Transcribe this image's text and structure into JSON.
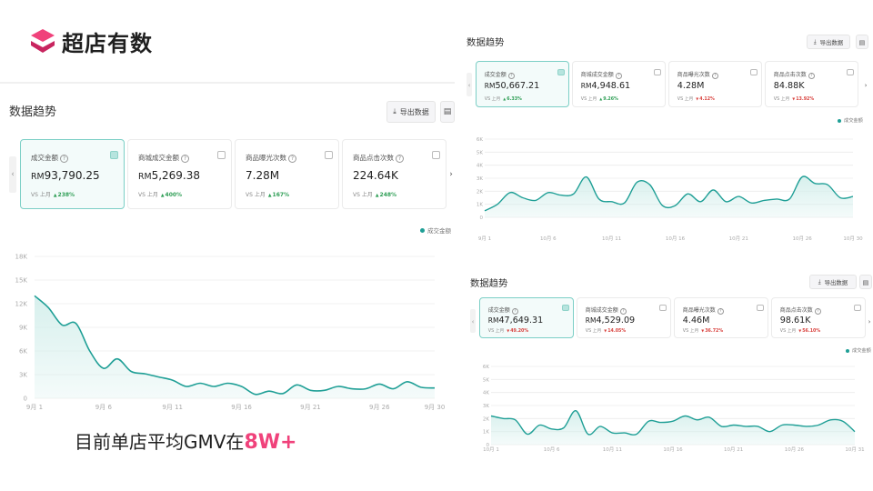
{
  "brand": {
    "name": "超店有数",
    "icon": "logo-mark-icon",
    "colors": {
      "top": "#f0427b",
      "bottom": "#c8255f"
    }
  },
  "caption": {
    "text": "目前单店平均GMV在",
    "highlight": "8W+"
  },
  "colors": {
    "accent": "#1f9f96",
    "fill": "#d5efec",
    "up": "#2e9e55",
    "down": "#d9433f",
    "highlight": "#f0427b"
  },
  "panels": [
    {
      "title": "数据趋势",
      "export_label": "导出数据",
      "export_icon": "download-icon",
      "save_icon": "save-icon",
      "legend": "成交金额",
      "metrics": [
        {
          "label": "成交金额",
          "currency": "RM",
          "value": "93,790.25",
          "cmp_label": "VS 上月",
          "change": "238%",
          "dir": "up",
          "arrow": "▲",
          "selected": true
        },
        {
          "label": "商城成交金额",
          "currency": "RM",
          "value": "5,269.38",
          "cmp_label": "VS 上月",
          "change": "400%",
          "dir": "up",
          "arrow": "▲",
          "selected": false
        },
        {
          "label": "商品曝光次数",
          "currency": "",
          "value": "7.28M",
          "cmp_label": "VS 上月",
          "change": "167%",
          "dir": "up",
          "arrow": "▲",
          "selected": false
        },
        {
          "label": "商品点击次数",
          "currency": "",
          "value": "224.64K",
          "cmp_label": "VS 上月",
          "change": "248%",
          "dir": "up",
          "arrow": "▲",
          "selected": false
        }
      ]
    },
    {
      "title": "数据趋势",
      "export_label": "导出数据",
      "export_icon": "download-icon",
      "save_icon": "save-icon",
      "legend": "成交金额",
      "metrics": [
        {
          "label": "成交金额",
          "currency": "RM",
          "value": "50,667.21",
          "cmp_label": "VS 上月",
          "change": "6.33%",
          "dir": "up",
          "arrow": "▲",
          "selected": true
        },
        {
          "label": "商城成交金额",
          "currency": "RM",
          "value": "4,948.61",
          "cmp_label": "VS 上月",
          "change": "9.26%",
          "dir": "up",
          "arrow": "▲",
          "selected": false
        },
        {
          "label": "商品曝光次数",
          "currency": "",
          "value": "4.28M",
          "cmp_label": "VS 上月",
          "change": "4.12%",
          "dir": "down",
          "arrow": "▼",
          "selected": false
        },
        {
          "label": "商品点击次数",
          "currency": "",
          "value": "84.88K",
          "cmp_label": "VS 上月",
          "change": "13.92%",
          "dir": "down",
          "arrow": "▼",
          "selected": false
        }
      ]
    },
    {
      "title": "数据趋势",
      "export_label": "导出数据",
      "export_icon": "download-icon",
      "save_icon": "save-icon",
      "legend": "成交金额",
      "metrics": [
        {
          "label": "成交金额",
          "currency": "RM",
          "value": "47,649.31",
          "cmp_label": "VS 上月",
          "change": "49.20%",
          "dir": "down",
          "arrow": "▼",
          "selected": true
        },
        {
          "label": "商城成交金额",
          "currency": "RM",
          "value": "4,529.09",
          "cmp_label": "VS 上月",
          "change": "14.05%",
          "dir": "down",
          "arrow": "▼",
          "selected": false
        },
        {
          "label": "商品曝光次数",
          "currency": "",
          "value": "4.46M",
          "cmp_label": "VS 上月",
          "change": "36.72%",
          "dir": "down",
          "arrow": "▼",
          "selected": false
        },
        {
          "label": "商品点击次数",
          "currency": "",
          "value": "98.61K",
          "cmp_label": "VS 上月",
          "change": "56.10%",
          "dir": "down",
          "arrow": "▼",
          "selected": false
        }
      ]
    }
  ],
  "chart_data": [
    {
      "type": "area",
      "title": "",
      "xlabel": "",
      "ylabel": "",
      "ylim": [
        0,
        18000
      ],
      "yticks": [
        0,
        3000,
        6000,
        9000,
        12000,
        15000,
        18000
      ],
      "ytick_labels": [
        "0",
        "3K",
        "6K",
        "9K",
        "12K",
        "15K",
        "18K"
      ],
      "xlim": [
        1,
        30
      ],
      "xticks": [
        1,
        6,
        11,
        16,
        21,
        26,
        30
      ],
      "xtick_labels": [
        "9月 1",
        "9月 6",
        "9月 11",
        "9月 16",
        "9月 21",
        "9月 26",
        "9月 30"
      ],
      "grid": true,
      "legend_position": "top-right",
      "series": [
        {
          "name": "成交金额",
          "x": [
            1,
            2,
            3,
            4,
            5,
            6,
            7,
            8,
            9,
            10,
            11,
            12,
            13,
            14,
            15,
            16,
            17,
            18,
            19,
            20,
            21,
            22,
            23,
            24,
            25,
            26,
            27,
            28,
            29,
            30
          ],
          "y": [
            13000,
            11500,
            9300,
            9500,
            6000,
            3800,
            5000,
            3400,
            3100,
            2700,
            2300,
            1500,
            1900,
            1500,
            1900,
            1500,
            500,
            900,
            600,
            1700,
            1000,
            1000,
            1500,
            1200,
            1200,
            1800,
            1200,
            2100,
            1400,
            1300
          ]
        }
      ]
    },
    {
      "type": "area",
      "title": "",
      "xlabel": "",
      "ylabel": "",
      "ylim": [
        0,
        6000
      ],
      "yticks": [
        0,
        1000,
        2000,
        3000,
        4000,
        5000,
        6000
      ],
      "ytick_labels": [
        "0",
        "1K",
        "2K",
        "3K",
        "4K",
        "5K",
        "6K"
      ],
      "xlim": [
        1,
        30
      ],
      "xticks": [
        1,
        6,
        11,
        16,
        21,
        26,
        30
      ],
      "xtick_labels": [
        "9月 1",
        "10月 6",
        "10月 11",
        "10月 16",
        "10月 21",
        "10月 26",
        "10月 30"
      ],
      "grid": true,
      "legend_position": "top-right",
      "series": [
        {
          "name": "成交金额",
          "x": [
            1,
            2,
            3,
            4,
            5,
            6,
            7,
            8,
            9,
            10,
            11,
            12,
            13,
            14,
            15,
            16,
            17,
            18,
            19,
            20,
            21,
            22,
            23,
            24,
            25,
            26,
            27,
            28,
            29,
            30
          ],
          "y": [
            500,
            1000,
            1900,
            1500,
            1300,
            1900,
            1700,
            1800,
            3100,
            1400,
            1200,
            1100,
            2700,
            2500,
            900,
            900,
            1800,
            1200,
            2100,
            1200,
            1600,
            1100,
            1300,
            1400,
            1400,
            3100,
            2600,
            2500,
            1500,
            1600
          ]
        }
      ]
    },
    {
      "type": "area",
      "title": "",
      "xlabel": "",
      "ylabel": "",
      "ylim": [
        0,
        6000
      ],
      "yticks": [
        0,
        1000,
        2000,
        3000,
        4000,
        5000,
        6000
      ],
      "ytick_labels": [
        "0",
        "1K",
        "2K",
        "3K",
        "4K",
        "5K",
        "6K"
      ],
      "xlim": [
        1,
        31
      ],
      "xticks": [
        1,
        6,
        11,
        16,
        21,
        26,
        31
      ],
      "xtick_labels": [
        "10月 1",
        "10月 6",
        "10月 11",
        "10月 16",
        "10月 21",
        "10月 26",
        "10月 31"
      ],
      "grid": true,
      "legend_position": "top-right",
      "series": [
        {
          "name": "成交金额",
          "x": [
            1,
            2,
            3,
            4,
            5,
            6,
            7,
            8,
            9,
            10,
            11,
            12,
            13,
            14,
            15,
            16,
            17,
            18,
            19,
            20,
            21,
            22,
            23,
            24,
            25,
            26,
            27,
            28,
            29,
            30,
            31
          ],
          "y": [
            2200,
            2000,
            1900,
            800,
            1500,
            1200,
            1300,
            2600,
            800,
            1400,
            900,
            900,
            800,
            1800,
            1700,
            1800,
            2200,
            1900,
            2100,
            1400,
            1500,
            1400,
            1400,
            1000,
            1500,
            1500,
            1400,
            1500,
            1900,
            1800,
            1000
          ]
        }
      ]
    }
  ]
}
